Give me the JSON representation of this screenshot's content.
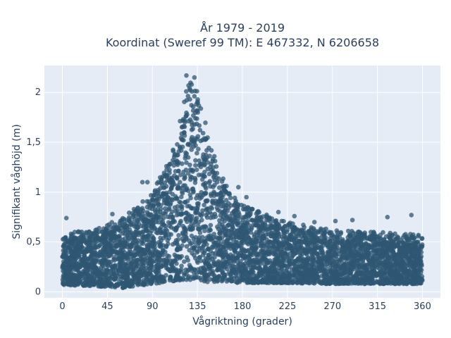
{
  "chart_data": {
    "type": "scatter",
    "title_lines": [
      "År 1979 - 2019",
      "Koordinat (Sweref 99 TM): E 467332, N 6206658"
    ],
    "xlabel": "Vågriktning (grader)",
    "ylabel": "Signifikant våghöjd (m)",
    "xlim": [
      -18,
      378
    ],
    "ylim": [
      -0.06,
      2.27
    ],
    "x_ticks": [
      0,
      45,
      90,
      135,
      180,
      225,
      270,
      315,
      360
    ],
    "x_tick_labels": [
      "0",
      "45",
      "90",
      "135",
      "180",
      "225",
      "270",
      "315",
      "360"
    ],
    "y_ticks": [
      0,
      0.5,
      1,
      1.5,
      2
    ],
    "y_tick_labels": [
      "0",
      "0,5",
      "1",
      "1,5",
      "2"
    ],
    "grid": true,
    "background": "#e5ecf6",
    "marker_color": "#2f5773",
    "x_range": [
      0,
      360
    ],
    "y_range": [
      0.03,
      2.17
    ],
    "envelope": {
      "direction": [
        0,
        30,
        60,
        90,
        105,
        120,
        127,
        135,
        145,
        160,
        180,
        225,
        270,
        315,
        360
      ],
      "max_height": [
        0.58,
        0.63,
        0.74,
        1.0,
        1.3,
        1.85,
        2.15,
        2.1,
        1.6,
        1.15,
        0.87,
        0.7,
        0.62,
        0.6,
        0.58
      ],
      "min_height": [
        0.07,
        0.06,
        0.04,
        0.08,
        0.1,
        0.12,
        0.12,
        0.12,
        0.1,
        0.1,
        0.09,
        0.09,
        0.08,
        0.08,
        0.08
      ]
    },
    "outliers": [
      {
        "x": 4,
        "y": 0.74
      },
      {
        "x": 50,
        "y": 0.78
      },
      {
        "x": 80,
        "y": 1.1
      },
      {
        "x": 85,
        "y": 1.1
      },
      {
        "x": 124,
        "y": 2.17
      },
      {
        "x": 132,
        "y": 2.15
      },
      {
        "x": 176,
        "y": 1.05
      },
      {
        "x": 184,
        "y": 0.95
      },
      {
        "x": 216,
        "y": 0.8
      },
      {
        "x": 232,
        "y": 0.76
      },
      {
        "x": 252,
        "y": 0.7
      },
      {
        "x": 273,
        "y": 0.71
      },
      {
        "x": 290,
        "y": 0.72
      },
      {
        "x": 325,
        "y": 0.75
      },
      {
        "x": 349,
        "y": 0.77
      },
      {
        "x": 356,
        "y": 0.57
      }
    ]
  }
}
